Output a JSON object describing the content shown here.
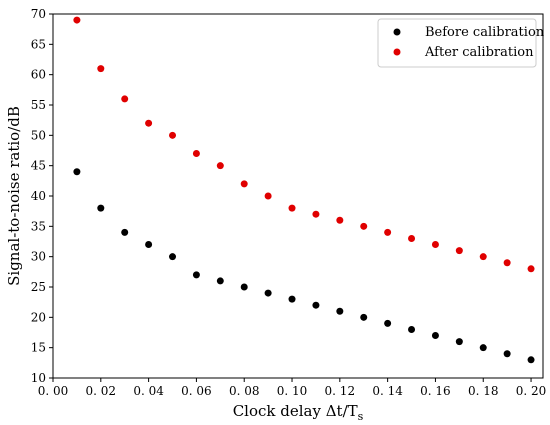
{
  "chart_data": {
    "type": "scatter",
    "x": [
      0.01,
      0.02,
      0.03,
      0.04,
      0.05,
      0.06,
      0.07,
      0.08,
      0.09,
      0.1,
      0.11,
      0.12,
      0.13,
      0.14,
      0.15,
      0.16,
      0.17,
      0.18,
      0.19,
      0.2
    ],
    "series": [
      {
        "name": "Before calibration",
        "color": "#000000",
        "values": [
          44,
          38,
          34,
          32,
          30,
          27,
          26,
          25,
          24,
          23,
          22,
          21,
          20,
          19,
          18,
          17,
          16,
          15,
          14,
          13
        ]
      },
      {
        "name": "After calibration",
        "color": "#e00000",
        "values": [
          69,
          61,
          56,
          52,
          50,
          47,
          45,
          42,
          40,
          38,
          37,
          36,
          35,
          34,
          33,
          32,
          31,
          30,
          29,
          28
        ]
      }
    ],
    "xlabel": "Clock delay Δt/T",
    "xlabel_subscript": "s",
    "ylabel": "Signal-to-noise ratio/dB",
    "xlim": [
      0.0,
      0.205
    ],
    "ylim": [
      10,
      70
    ],
    "xticks": [
      0.0,
      0.02,
      0.04,
      0.06,
      0.08,
      0.1,
      0.12,
      0.14,
      0.16,
      0.18,
      0.2
    ],
    "xtick_labels": [
      "0. 00",
      "0. 02",
      "0. 04",
      "0. 06",
      "0. 08",
      "0. 10",
      "0. 12",
      "0. 14",
      "0. 16",
      "0. 18",
      "0. 20"
    ],
    "yticks": [
      10,
      15,
      20,
      25,
      30,
      35,
      40,
      45,
      50,
      55,
      60,
      65,
      70
    ],
    "ytick_labels": [
      "10",
      "15",
      "20",
      "25",
      "30",
      "35",
      "40",
      "45",
      "50",
      "55",
      "60",
      "65",
      "70"
    ],
    "grid": false,
    "legend_position": "top-right"
  }
}
